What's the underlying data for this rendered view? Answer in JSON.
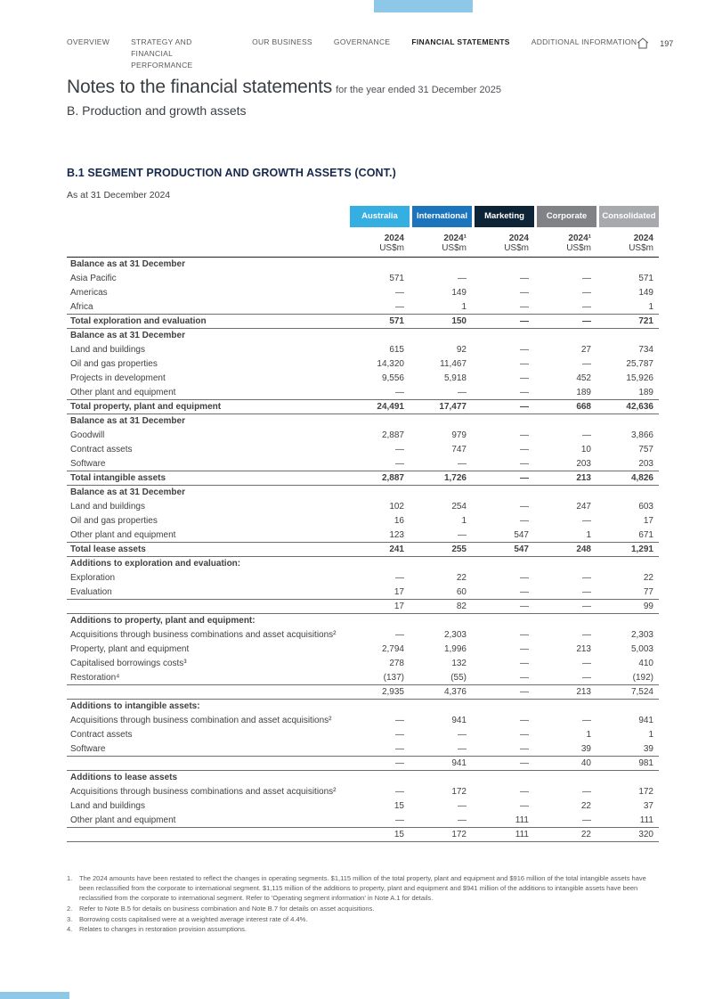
{
  "page": {
    "number": "197"
  },
  "nav": {
    "items": [
      {
        "label": "OVERVIEW",
        "active": false
      },
      {
        "label": "STRATEGY AND FINANCIAL PERFORMANCE",
        "active": false
      },
      {
        "label": "OUR BUSINESS",
        "active": false
      },
      {
        "label": "GOVERNANCE",
        "active": false
      },
      {
        "label": "FINANCIAL STATEMENTS",
        "active": true
      },
      {
        "label": "ADDITIONAL INFORMATION",
        "active": false
      }
    ],
    "home_icon": "home-icon"
  },
  "header": {
    "title": "Notes to the financial statements",
    "title_suffix": "for the year ended 31 December 2025",
    "subtitle": "B. Production and growth assets"
  },
  "section": {
    "heading": "B.1 SEGMENT PRODUCTION AND GROWTH ASSETS (CONT.)",
    "as_at": "As at 31 December 2024"
  },
  "accent_colors": {
    "tab_blue": "#8DC8E8"
  },
  "table": {
    "columns": [
      {
        "label": "Australia",
        "color": "#35AEE2",
        "year": "2024",
        "unit": "US$m"
      },
      {
        "label": "International",
        "color": "#1C75BC",
        "year": "2024¹",
        "unit": "US$m"
      },
      {
        "label": "Marketing",
        "color": "#0D2436",
        "year": "2024",
        "unit": "US$m"
      },
      {
        "label": "Corporate",
        "color": "#808285",
        "year": "2024¹",
        "unit": "US$m"
      },
      {
        "label": "Consolidated",
        "color": "#A7A9AC",
        "year": "2024",
        "unit": "US$m"
      }
    ],
    "rows": [
      {
        "type": "section",
        "label": "Balance as at 31 December",
        "values": [
          "",
          "",
          "",
          "",
          ""
        ]
      },
      {
        "type": "data",
        "label": "Asia Pacific",
        "values": [
          "571",
          "—",
          "—",
          "—",
          "571"
        ]
      },
      {
        "type": "data",
        "label": "Americas",
        "values": [
          "—",
          "149",
          "—",
          "—",
          "149"
        ]
      },
      {
        "type": "data",
        "label": "Africa",
        "values": [
          "—",
          "1",
          "—",
          "—",
          "1"
        ]
      },
      {
        "type": "total",
        "label": "Total exploration and evaluation",
        "values": [
          "571",
          "150",
          "—",
          "—",
          "721"
        ]
      },
      {
        "type": "section",
        "label": "Balance as at 31 December",
        "values": [
          "",
          "",
          "",
          "",
          ""
        ]
      },
      {
        "type": "data",
        "label": "Land and buildings",
        "values": [
          "615",
          "92",
          "—",
          "27",
          "734"
        ]
      },
      {
        "type": "data",
        "label": "Oil and gas properties",
        "values": [
          "14,320",
          "11,467",
          "—",
          "—",
          "25,787"
        ]
      },
      {
        "type": "data",
        "label": "Projects in development",
        "values": [
          "9,556",
          "5,918",
          "—",
          "452",
          "15,926"
        ]
      },
      {
        "type": "data",
        "label": "Other plant and equipment",
        "values": [
          "—",
          "—",
          "—",
          "189",
          "189"
        ]
      },
      {
        "type": "total",
        "label": "Total property, plant and equipment",
        "values": [
          "24,491",
          "17,477",
          "—",
          "668",
          "42,636"
        ]
      },
      {
        "type": "section",
        "label": "Balance as at 31 December",
        "values": [
          "",
          "",
          "",
          "",
          ""
        ]
      },
      {
        "type": "data",
        "label": "Goodwill",
        "values": [
          "2,887",
          "979",
          "—",
          "—",
          "3,866"
        ]
      },
      {
        "type": "data",
        "label": "Contract assets",
        "values": [
          "—",
          "747",
          "—",
          "10",
          "757"
        ]
      },
      {
        "type": "data",
        "label": "Software",
        "values": [
          "—",
          "—",
          "—",
          "203",
          "203"
        ]
      },
      {
        "type": "total",
        "label": "Total intangible assets",
        "values": [
          "2,887",
          "1,726",
          "—",
          "213",
          "4,826"
        ]
      },
      {
        "type": "section",
        "label": "Balance as at 31 December",
        "values": [
          "",
          "",
          "",
          "",
          ""
        ]
      },
      {
        "type": "data",
        "label": "Land and buildings",
        "values": [
          "102",
          "254",
          "—",
          "247",
          "603"
        ]
      },
      {
        "type": "data",
        "label": "Oil and gas properties",
        "values": [
          "16",
          "1",
          "—",
          "—",
          "17"
        ]
      },
      {
        "type": "data",
        "label": "Other plant and equipment",
        "values": [
          "123",
          "—",
          "547",
          "1",
          "671"
        ]
      },
      {
        "type": "total",
        "label": "Total lease assets",
        "values": [
          "241",
          "255",
          "547",
          "248",
          "1,291"
        ]
      },
      {
        "type": "section",
        "label": "Additions to exploration and evaluation:",
        "values": [
          "",
          "",
          "",
          "",
          ""
        ]
      },
      {
        "type": "data",
        "label": "Exploration",
        "values": [
          "—",
          "22",
          "—",
          "—",
          "22"
        ]
      },
      {
        "type": "data",
        "label": "Evaluation",
        "values": [
          "17",
          "60",
          "—",
          "—",
          "77"
        ]
      },
      {
        "type": "subtotal",
        "label": "",
        "values": [
          "17",
          "82",
          "—",
          "—",
          "99"
        ]
      },
      {
        "type": "section",
        "label": "Additions to property, plant and equipment:",
        "values": [
          "",
          "",
          "",
          "",
          ""
        ]
      },
      {
        "type": "data",
        "label": "Acquisitions through business combinations and asset acquisitions²",
        "values": [
          "—",
          "2,303",
          "—",
          "—",
          "2,303"
        ]
      },
      {
        "type": "data",
        "label": "Property, plant and equipment",
        "values": [
          "2,794",
          "1,996",
          "—",
          "213",
          "5,003"
        ]
      },
      {
        "type": "data",
        "label": "Capitalised borrowings costs³",
        "values": [
          "278",
          "132",
          "—",
          "—",
          "410"
        ]
      },
      {
        "type": "data",
        "label": "Restoration⁴",
        "values": [
          "(137)",
          "(55)",
          "—",
          "—",
          "(192)"
        ]
      },
      {
        "type": "subtotal",
        "label": "",
        "values": [
          "2,935",
          "4,376",
          "—",
          "213",
          "7,524"
        ]
      },
      {
        "type": "section",
        "label": "Additions to intangible assets:",
        "values": [
          "",
          "",
          "",
          "",
          ""
        ]
      },
      {
        "type": "data",
        "label": "Acquisitions through business combination and asset acquisitions²",
        "values": [
          "—",
          "941",
          "—",
          "—",
          "941"
        ]
      },
      {
        "type": "data",
        "label": "Contract assets",
        "values": [
          "—",
          "—",
          "—",
          "1",
          "1"
        ]
      },
      {
        "type": "data",
        "label": "Software",
        "values": [
          "—",
          "—",
          "—",
          "39",
          "39"
        ]
      },
      {
        "type": "subtotal",
        "label": "",
        "values": [
          "—",
          "941",
          "—",
          "40",
          "981"
        ]
      },
      {
        "type": "section",
        "label": "Additions to lease assets",
        "values": [
          "",
          "",
          "",
          "",
          ""
        ]
      },
      {
        "type": "data",
        "label": "Acquisitions through business combinations and asset acquisitions²",
        "values": [
          "—",
          "172",
          "—",
          "—",
          "172"
        ]
      },
      {
        "type": "data",
        "label": "Land and buildings",
        "values": [
          "15",
          "—",
          "—",
          "22",
          "37"
        ]
      },
      {
        "type": "data",
        "label": "Other plant and equipment",
        "values": [
          "—",
          "—",
          "111",
          "—",
          "111"
        ]
      },
      {
        "type": "subtotal",
        "label": "",
        "values": [
          "15",
          "172",
          "111",
          "22",
          "320"
        ]
      }
    ]
  },
  "footnotes": [
    {
      "num": "1",
      "text": "The 2024 amounts have been restated to reflect the changes in operating segments. $1,115 million of the total property, plant and equipment and $916 million of the total intangible assets have been reclassified from the corporate to international segment. $1,115 million of the additions to property, plant and equipment and $941 million of the additions to intangible assets have been reclassified from the corporate to international segment. Refer to 'Operating segment information' in Note A.1 for details."
    },
    {
      "num": "2",
      "text": "Refer to Note B.5 for details on business combination and Note B.7 for details on asset acquisitions."
    },
    {
      "num": "3",
      "text": "Borrowing costs capitalised were at a weighted average interest rate of 4.4%."
    },
    {
      "num": "4",
      "text": "Relates to changes in restoration provision assumptions."
    }
  ]
}
